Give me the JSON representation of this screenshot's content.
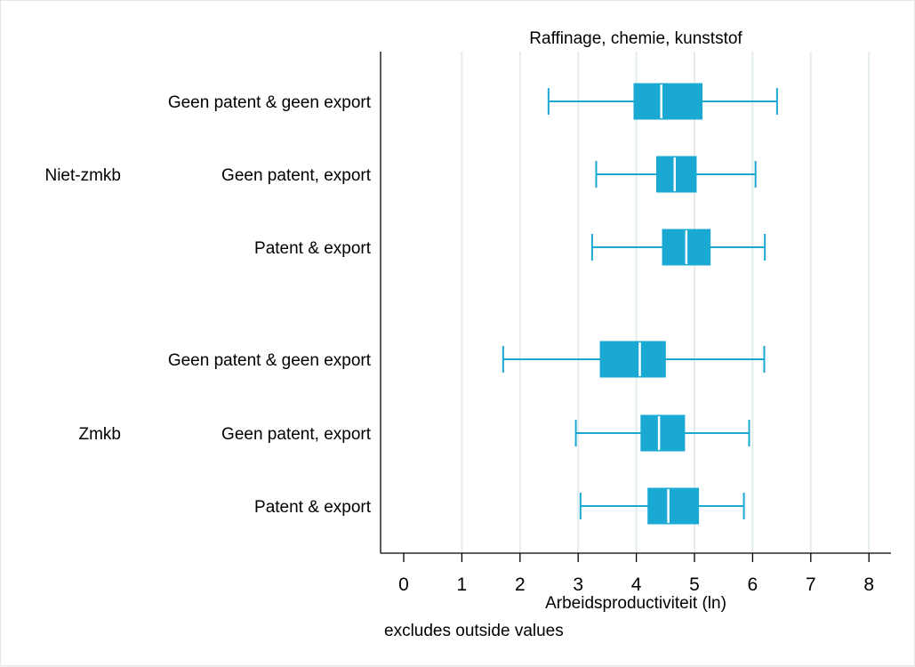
{
  "chart_data": {
    "type": "boxplot",
    "title": "Raffinage, chemie, kunststof",
    "xlabel": "Arbeidsproductiviteit (ln)",
    "note": "excludes outside values",
    "xlim": [
      -0.4,
      8.4
    ],
    "xticks": [
      0,
      1,
      2,
      3,
      4,
      5,
      6,
      7,
      8
    ],
    "grid": true,
    "colors": {
      "box": "#1aa9d3",
      "median": "#ffffff",
      "grid": "#e4ecee"
    },
    "groups": [
      {
        "name": "Niet-zmkb",
        "rows": [
          {
            "label": "Geen patent & geen export",
            "min": 2.49,
            "q1": 3.96,
            "median": 4.43,
            "q3": 5.13,
            "max": 6.42
          },
          {
            "label": "Geen patent, export",
            "min": 3.31,
            "q1": 4.35,
            "median": 4.66,
            "q3": 5.03,
            "max": 6.05
          },
          {
            "label": "Patent & export",
            "min": 3.24,
            "q1": 4.45,
            "median": 4.86,
            "q3": 5.27,
            "max": 6.21
          }
        ]
      },
      {
        "name": "Zmkb",
        "rows": [
          {
            "label": "Geen patent & geen export",
            "min": 1.71,
            "q1": 3.38,
            "median": 4.06,
            "q3": 4.5,
            "max": 6.2
          },
          {
            "label": "Geen patent, export",
            "min": 2.96,
            "q1": 4.08,
            "median": 4.39,
            "q3": 4.83,
            "max": 5.94
          },
          {
            "label": "Patent & export",
            "min": 3.04,
            "q1": 4.2,
            "median": 4.55,
            "q3": 5.07,
            "max": 5.85
          }
        ]
      }
    ]
  }
}
